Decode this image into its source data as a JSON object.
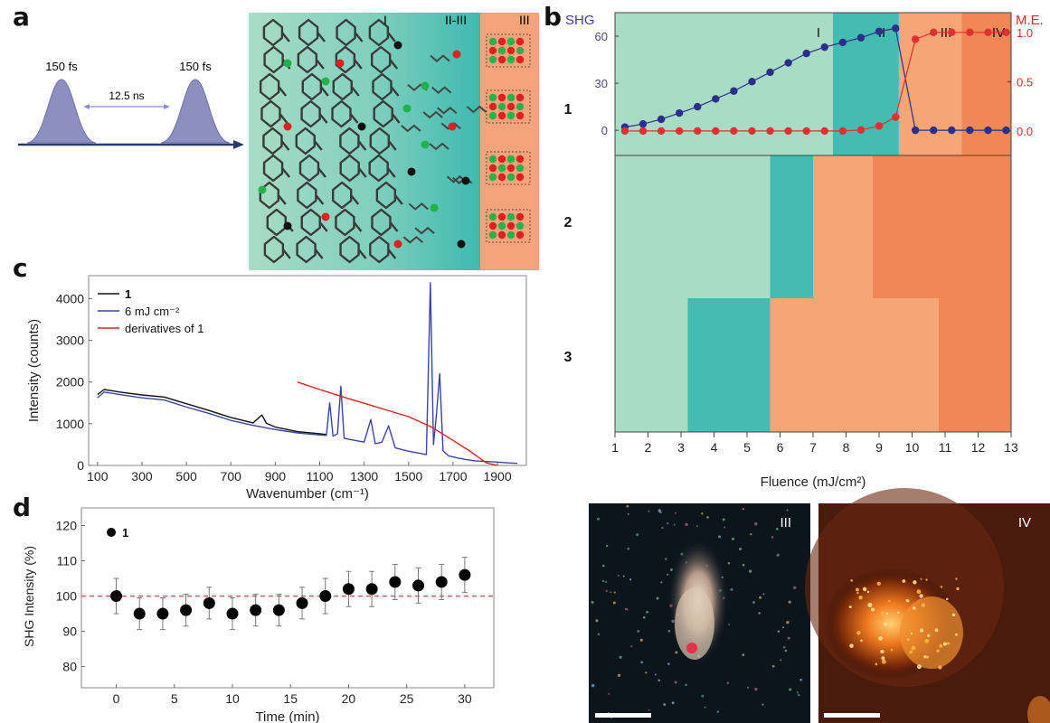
{
  "panels": {
    "a": "a",
    "b": "b",
    "c": "c",
    "d": "d"
  },
  "panel_a": {
    "pulse_label_1": "150 fs",
    "pulse_label_2": "150 fs",
    "separation_label": "12.5 ns",
    "zone_labels": [
      "I",
      "II-III",
      "III"
    ]
  },
  "panel_b": {
    "sample_rows": [
      "1",
      "2",
      "3"
    ],
    "regime_labels": [
      "I",
      "II",
      "III",
      "IV"
    ],
    "colors": {
      "regime_I": "#a8dcc4",
      "regime_II": "#45bcb2",
      "regime_III": "#f6a575",
      "regime_IV": "#f08754"
    }
  },
  "panel_photos": {
    "labels": [
      "III",
      "IV"
    ]
  },
  "chart_data": [
    {
      "id": "b-row1",
      "type": "line",
      "xlabel": "Fluence (mJ/cm²)",
      "xlim": [
        1,
        13
      ],
      "xticks": [
        1,
        2,
        3,
        4,
        5,
        6,
        7,
        8,
        9,
        10,
        11,
        12,
        13
      ],
      "ylabel_left": "SHG",
      "ylabel_right": "M.E.",
      "ylim_left": [
        -8,
        75
      ],
      "yticks_left": [
        0,
        30,
        60
      ],
      "ylim_right": [
        -0.12,
        1.2
      ],
      "yticks_right": [
        "0.0",
        "0.5",
        "1.0"
      ],
      "regimes": [
        {
          "label": "I",
          "from": 1,
          "to": 7.6,
          "color": "#a8dcc4"
        },
        {
          "label": "II",
          "from": 7.6,
          "to": 9.6,
          "color": "#45bcb2"
        },
        {
          "label": "III",
          "from": 9.6,
          "to": 11.5,
          "color": "#f6a575"
        },
        {
          "label": "IV",
          "from": 11.5,
          "to": 13,
          "color": "#f08754"
        }
      ],
      "series": [
        {
          "axis": "left",
          "color": "#2c2f8a",
          "x": [
            1.3,
            1.85,
            2.4,
            2.95,
            3.5,
            4.05,
            4.6,
            5.15,
            5.7,
            6.25,
            6.8,
            7.35,
            7.9,
            8.45,
            9.0,
            9.5,
            10.1,
            10.65,
            11.2,
            11.75,
            12.3,
            12.85
          ],
          "y": [
            2,
            4,
            7,
            11,
            15,
            20,
            25,
            31,
            37,
            43,
            49,
            53,
            56,
            59,
            63,
            65,
            0,
            0,
            0,
            0,
            0,
            0
          ]
        },
        {
          "axis": "right",
          "color": "#e03030",
          "x": [
            1.3,
            1.85,
            2.4,
            2.95,
            3.5,
            4.05,
            4.6,
            5.15,
            5.7,
            6.25,
            6.8,
            7.35,
            7.9,
            8.45,
            9.0,
            9.5,
            10.1,
            10.65,
            11.2,
            11.75,
            12.3,
            12.85
          ],
          "y": [
            0,
            0,
            0,
            0,
            0,
            0,
            0,
            0,
            0,
            0,
            0,
            0,
            0,
            0.01,
            0.05,
            0.14,
            0.93,
            1.0,
            1.0,
            1.0,
            1.0,
            1.0
          ]
        }
      ]
    },
    {
      "id": "b-rows23",
      "type": "heatmap",
      "xlim": [
        1,
        13
      ],
      "rows": [
        {
          "label": "2",
          "segments": [
            {
              "from": 1,
              "to": 5.7,
              "regime": "I"
            },
            {
              "from": 5.7,
              "to": 7.0,
              "regime": "II"
            },
            {
              "from": 7.0,
              "to": 8.8,
              "regime": "III"
            },
            {
              "from": 8.8,
              "to": 13,
              "regime": "IV"
            }
          ]
        },
        {
          "label": "3",
          "segments": [
            {
              "from": 1,
              "to": 3.2,
              "regime": "I"
            },
            {
              "from": 3.2,
              "to": 5.7,
              "regime": "II"
            },
            {
              "from": 5.7,
              "to": 10.8,
              "regime": "III"
            },
            {
              "from": 10.8,
              "to": 13,
              "regime": "IV"
            }
          ]
        }
      ]
    },
    {
      "id": "c",
      "type": "line",
      "xlabel": "Wavenumber (cm⁻¹)",
      "ylabel": "Intensity (counts)",
      "xlim": [
        60,
        2030
      ],
      "xticks": [
        100,
        300,
        500,
        700,
        900,
        1100,
        1300,
        1500,
        1700,
        1900
      ],
      "ylim": [
        0,
        4550
      ],
      "yticks": [
        0,
        1000,
        2000,
        3000,
        4000
      ],
      "legend": [
        "1",
        "6 mJ cm⁻²",
        "derivatives of 1"
      ],
      "series": [
        {
          "name": "1",
          "color": "#111111",
          "x": [
            100,
            130,
            200,
            300,
            400,
            500,
            600,
            700,
            800,
            840,
            860,
            900,
            1000,
            1100,
            1130
          ],
          "y": [
            1700,
            1820,
            1760,
            1690,
            1640,
            1480,
            1320,
            1150,
            1020,
            1210,
            1010,
            920,
            810,
            760,
            740
          ]
        },
        {
          "name": "6 mJ cm⁻²",
          "color": "#3a44a8",
          "x": [
            100,
            130,
            200,
            300,
            400,
            500,
            600,
            700,
            800,
            900,
            1000,
            1100,
            1130,
            1145,
            1160,
            1180,
            1195,
            1210,
            1240,
            1300,
            1330,
            1350,
            1380,
            1410,
            1440,
            1500,
            1550,
            1580,
            1598,
            1612,
            1625,
            1640,
            1655,
            1680,
            1720,
            1760,
            1800,
            1860,
            1900,
            1950,
            1990
          ],
          "y": [
            1620,
            1760,
            1700,
            1620,
            1570,
            1400,
            1250,
            1080,
            960,
            860,
            780,
            730,
            720,
            1500,
            700,
            760,
            1900,
            650,
            620,
            560,
            1100,
            520,
            560,
            950,
            420,
            340,
            290,
            260,
            4380,
            500,
            1200,
            2200,
            350,
            230,
            180,
            140,
            110,
            90,
            80,
            60,
            50
          ]
        },
        {
          "name": "derivatives of 1",
          "color": "#e02020",
          "x": [
            1000,
            1100,
            1200,
            1300,
            1400,
            1500,
            1600,
            1700,
            1780,
            1850,
            1900
          ],
          "y": [
            2000,
            1820,
            1650,
            1490,
            1330,
            1170,
            930,
            600,
            330,
            60,
            0
          ]
        }
      ]
    },
    {
      "id": "d",
      "type": "scatter",
      "xlabel": "Time (min)",
      "ylabel": "SHG Intensity (%)",
      "xlim": [
        -3,
        32.5
      ],
      "xticks": [
        0,
        5,
        10,
        15,
        20,
        25,
        30
      ],
      "ylim": [
        74,
        125
      ],
      "yticks": [
        80,
        90,
        100,
        110,
        120
      ],
      "reference_line": 100,
      "legend_marker": "1",
      "points": [
        {
          "x": 0,
          "y": 100,
          "err": 5
        },
        {
          "x": 2,
          "y": 95,
          "err": 4.5
        },
        {
          "x": 4,
          "y": 95,
          "err": 4.5
        },
        {
          "x": 6,
          "y": 96,
          "err": 4.5
        },
        {
          "x": 8,
          "y": 98,
          "err": 4.5
        },
        {
          "x": 10,
          "y": 95,
          "err": 4.5
        },
        {
          "x": 12,
          "y": 96,
          "err": 4.5
        },
        {
          "x": 14,
          "y": 96,
          "err": 4.5
        },
        {
          "x": 16,
          "y": 98,
          "err": 4.5
        },
        {
          "x": 18,
          "y": 100,
          "err": 5
        },
        {
          "x": 20,
          "y": 102,
          "err": 5
        },
        {
          "x": 22,
          "y": 102,
          "err": 5
        },
        {
          "x": 24,
          "y": 104,
          "err": 5
        },
        {
          "x": 26,
          "y": 103,
          "err": 5
        },
        {
          "x": 28,
          "y": 104,
          "err": 5
        },
        {
          "x": 30,
          "y": 106,
          "err": 5
        }
      ]
    }
  ]
}
